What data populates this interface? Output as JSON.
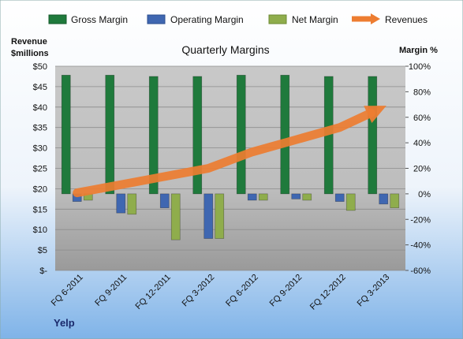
{
  "chart_data": {
    "type": "bar",
    "title": "Quarterly Margins",
    "brand": "Yelp",
    "categories": [
      "FQ 6-2011",
      "FQ 9-2011",
      "FQ 12-2011",
      "FQ 3-2012",
      "FQ 6-2012",
      "FQ 9-2012",
      "FQ 12-2012",
      "FQ 3-2013"
    ],
    "left_axis": {
      "title_lines": [
        "Revenue",
        "$millions"
      ],
      "min": 0,
      "max": 50,
      "step": 5,
      "tick_labels": [
        "$-",
        "$5",
        "$10",
        "$15",
        "$20",
        "$25",
        "$30",
        "$35",
        "$40",
        "$45",
        "$50"
      ]
    },
    "right_axis": {
      "title": "Margin %",
      "min": -60,
      "max": 100,
      "step": 20,
      "tick_labels": [
        "-60%",
        "-40%",
        "-20%",
        "0%",
        "20%",
        "40%",
        "60%",
        "80%",
        "100%"
      ]
    },
    "series": [
      {
        "name": "Gross Margin",
        "kind": "bar",
        "axis": "right",
        "color": "#1f7a3c",
        "values": [
          93,
          93,
          92,
          92,
          93,
          93,
          92,
          92
        ]
      },
      {
        "name": "Operating Margin",
        "kind": "bar",
        "axis": "right",
        "color": "#3f67b1",
        "values": [
          -6,
          -15,
          -11,
          -35,
          -5,
          -4,
          -6,
          -8
        ]
      },
      {
        "name": "Net Margin",
        "kind": "bar",
        "axis": "right",
        "color": "#8fad4c",
        "values": [
          -5,
          -16,
          -36,
          -35,
          -5,
          -5,
          -13,
          -11
        ]
      },
      {
        "name": "Revenues",
        "kind": "line",
        "axis": "left",
        "color": "#ed7d31",
        "values": [
          19,
          21,
          23,
          25,
          29,
          32,
          35,
          40
        ]
      }
    ],
    "grid": true,
    "legend_position": "top"
  }
}
